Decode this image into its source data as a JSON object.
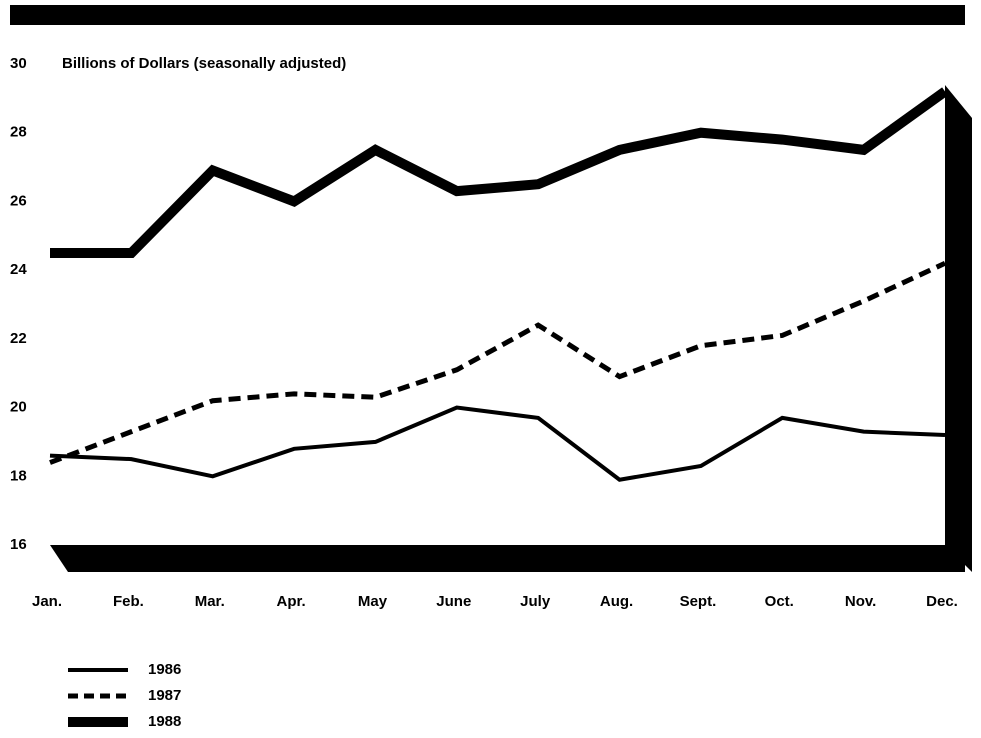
{
  "chart_data": {
    "type": "line",
    "y_axis_label": "Billions of Dollars (seasonally adjusted)",
    "categories": [
      "Jan.",
      "Feb.",
      "Mar.",
      "Apr.",
      "May",
      "June",
      "July",
      "Aug.",
      "Sept.",
      "Oct.",
      "Nov.",
      "Dec."
    ],
    "series": [
      {
        "name": "1986",
        "color": "#000000",
        "line_style": "solid",
        "values": [
          18.6,
          18.5,
          18.0,
          18.8,
          19.0,
          20.0,
          19.7,
          17.9,
          18.3,
          19.7,
          19.3,
          19.2
        ]
      },
      {
        "name": "1987",
        "color": "#000000",
        "line_style": "dashed",
        "values": [
          18.4,
          19.3,
          20.2,
          20.4,
          20.3,
          21.1,
          22.4,
          20.9,
          21.8,
          22.1,
          23.1,
          24.2
        ]
      },
      {
        "name": "1988",
        "color": "#000000",
        "line_style": "solid",
        "values": [
          24.5,
          24.5,
          26.9,
          26.0,
          27.5,
          26.3,
          26.5,
          27.5,
          28.0,
          27.8,
          27.5,
          29.2
        ]
      }
    ],
    "ylim": [
      16,
      30
    ],
    "yticks": [
      16,
      18,
      20,
      22,
      24,
      26,
      28,
      30
    ],
    "grid": false
  }
}
